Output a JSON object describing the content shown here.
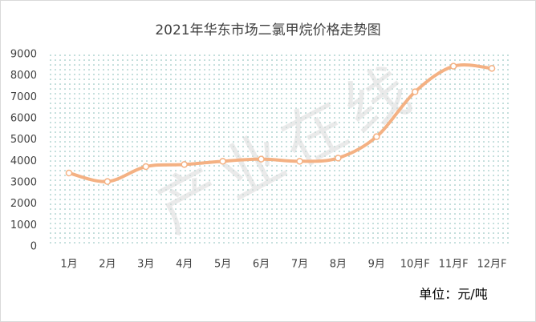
{
  "chart_data": {
    "type": "line",
    "title": "2021年华东市场二氯甲烷价格走势图",
    "categories": [
      "1月",
      "2月",
      "3月",
      "4月",
      "5月",
      "6月",
      "7月",
      "8月",
      "9月",
      "10月F",
      "11月F",
      "12月F"
    ],
    "series": [
      {
        "name": "二氯甲烷",
        "color": "#f4b183",
        "values": [
          3450,
          3050,
          3750,
          3850,
          4000,
          4100,
          4000,
          4150,
          5150,
          7250,
          8450,
          8350
        ]
      }
    ],
    "ylim": [
      0,
      9000
    ],
    "yticks": [
      0,
      1000,
      2000,
      3000,
      4000,
      5000,
      6000,
      7000,
      8000,
      9000
    ],
    "unit_label": "单位：元/吨",
    "watermark": "产业在线",
    "legend": false
  }
}
